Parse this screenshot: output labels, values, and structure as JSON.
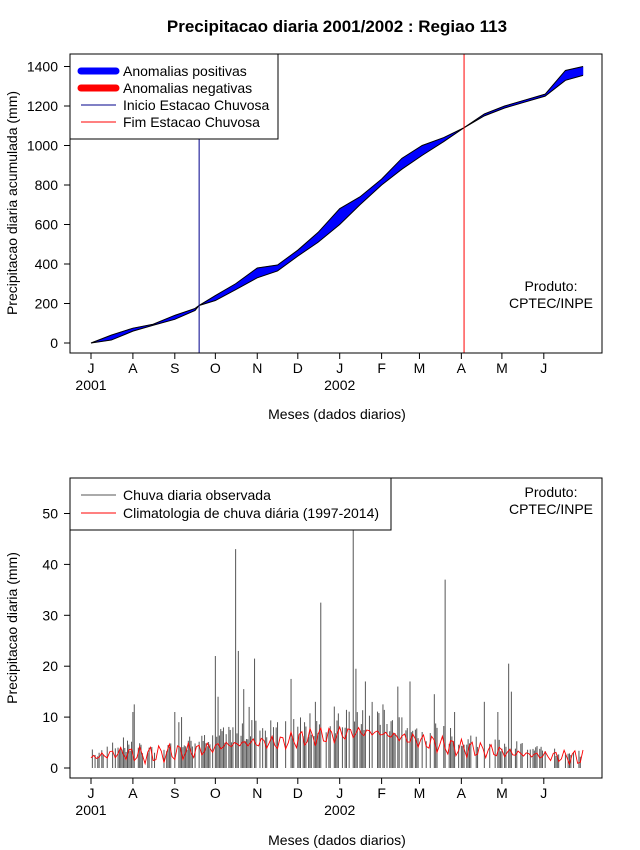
{
  "title": "Precipitacao diaria 2001/2002 : Regiao 113",
  "chart_data": [
    {
      "type": "area",
      "ylabel": "Precipitacao diaria acumulada (mm)",
      "xlabel": "Meses (dados diarios)",
      "ylim": [
        0,
        1450
      ],
      "yticks": [
        0,
        200,
        400,
        600,
        800,
        1000,
        1200,
        1400
      ],
      "months": [
        "J",
        "A",
        "S",
        "O",
        "N",
        "D",
        "J",
        "F",
        "M",
        "A",
        "M",
        "J"
      ],
      "years": [
        "2001",
        "2002"
      ],
      "legend": [
        {
          "label": "Anomalias positivas",
          "color": "#0000ff"
        },
        {
          "label": "Anomalias negativas",
          "color": "#ff0000"
        },
        {
          "label": "Inicio Estacao Chuvosa",
          "color": "#00008b"
        },
        {
          "label": "Fim Estacao Chuvosa",
          "color": "#ff0000"
        }
      ],
      "product_label": "Produto:",
      "product_name": "CPTEC/INPE",
      "onset_day": 80,
      "end_day": 276,
      "x_days": [
        0,
        15,
        31,
        46,
        62,
        77,
        80,
        92,
        107,
        123,
        138,
        153,
        168,
        184,
        199,
        215,
        230,
        245,
        261,
        276,
        291,
        306,
        321,
        336,
        351,
        364
      ],
      "observed": [
        0,
        40,
        75,
        95,
        140,
        175,
        190,
        240,
        300,
        380,
        395,
        470,
        560,
        680,
        740,
        830,
        935,
        1000,
        1040,
        1090,
        1160,
        1200,
        1230,
        1260,
        1380,
        1400
      ],
      "climatology": [
        0,
        15,
        60,
        90,
        120,
        165,
        190,
        215,
        270,
        330,
        365,
        440,
        510,
        600,
        700,
        800,
        880,
        950,
        1020,
        1090,
        1150,
        1190,
        1220,
        1250,
        1330,
        1355
      ]
    },
    {
      "type": "bar",
      "ylabel": "Precipitacao diaria (mm)",
      "xlabel": "Meses (dados diarios)",
      "ylim": [
        0,
        57
      ],
      "yticks": [
        0,
        10,
        20,
        30,
        40,
        50
      ],
      "months": [
        "J",
        "A",
        "S",
        "O",
        "N",
        "D",
        "J",
        "F",
        "M",
        "A",
        "M",
        "J"
      ],
      "years": [
        "2001",
        "2002"
      ],
      "legend": [
        {
          "label": "Chuva diaria observada",
          "color": "#555555"
        },
        {
          "label": "Climatologia de chuva diária (1997-2014)",
          "color": "#ff0000"
        }
      ],
      "product_label": "Produto:",
      "product_name": "CPTEC/INPE",
      "peaks": [
        {
          "day": 8,
          "value": 3.5
        },
        {
          "day": 20,
          "value": 4
        },
        {
          "day": 24,
          "value": 6
        },
        {
          "day": 31,
          "value": 11
        },
        {
          "day": 32,
          "value": 12.5
        },
        {
          "day": 35,
          "value": 4
        },
        {
          "day": 62,
          "value": 11
        },
        {
          "day": 65,
          "value": 9
        },
        {
          "day": 67,
          "value": 10
        },
        {
          "day": 92,
          "value": 22
        },
        {
          "day": 94,
          "value": 14
        },
        {
          "day": 107,
          "value": 43
        },
        {
          "day": 109,
          "value": 23
        },
        {
          "day": 113,
          "value": 15.5
        },
        {
          "day": 117,
          "value": 12
        },
        {
          "day": 121,
          "value": 21.5
        },
        {
          "day": 138,
          "value": 9
        },
        {
          "day": 148,
          "value": 17.5
        },
        {
          "day": 158,
          "value": 9
        },
        {
          "day": 166,
          "value": 13
        },
        {
          "day": 170,
          "value": 32.5
        },
        {
          "day": 176,
          "value": 7.5
        },
        {
          "day": 186,
          "value": 8
        },
        {
          "day": 194,
          "value": 52
        },
        {
          "day": 196,
          "value": 19.5
        },
        {
          "day": 203,
          "value": 17
        },
        {
          "day": 216,
          "value": 12.5
        },
        {
          "day": 227,
          "value": 16
        },
        {
          "day": 236,
          "value": 17
        },
        {
          "day": 254,
          "value": 14.5
        },
        {
          "day": 262,
          "value": 37
        },
        {
          "day": 269,
          "value": 11
        },
        {
          "day": 291,
          "value": 13
        },
        {
          "day": 301,
          "value": 11
        },
        {
          "day": 309,
          "value": 20.5
        },
        {
          "day": 311,
          "value": 15
        }
      ],
      "climatology_points": [
        [
          0,
          2
        ],
        [
          20,
          3
        ],
        [
          40,
          2.5
        ],
        [
          60,
          3
        ],
        [
          80,
          3.5
        ],
        [
          100,
          4.5
        ],
        [
          120,
          5
        ],
        [
          140,
          5
        ],
        [
          160,
          6
        ],
        [
          180,
          6.5
        ],
        [
          195,
          7
        ],
        [
          210,
          7
        ],
        [
          230,
          6
        ],
        [
          250,
          5
        ],
        [
          270,
          4
        ],
        [
          290,
          3.5
        ],
        [
          310,
          3
        ],
        [
          330,
          2.5
        ],
        [
          364,
          2
        ]
      ]
    }
  ]
}
